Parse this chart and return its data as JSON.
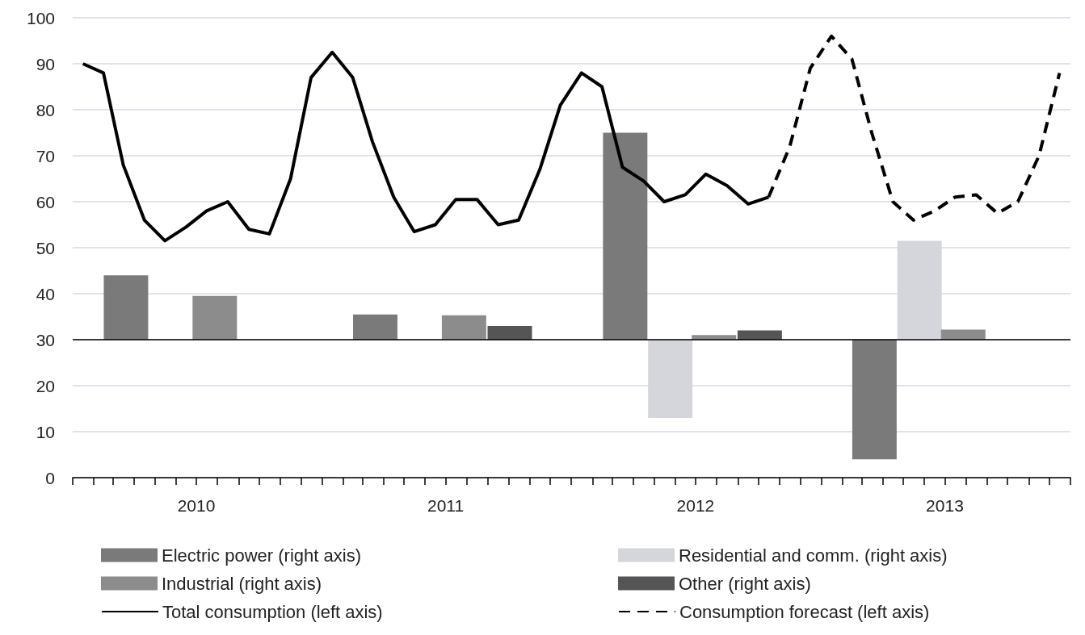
{
  "chart_data": {
    "type": "bar",
    "series": [
      {
        "name": "Electric power (right axis)",
        "color": "#7a7a7a",
        "x": [
          "2010-03-20",
          "2011-03-20",
          "2012-03-20",
          "2013-03-20"
        ],
        "base": [
          30,
          30,
          30,
          30
        ],
        "values": [
          14,
          5.5,
          45,
          -26
        ]
      },
      {
        "name": "Residential and comm. (right axis)",
        "color": "#d4d6dc",
        "x": [
          "2012-05-25",
          "2013-05-25"
        ],
        "base": [
          30,
          30
        ],
        "values": [
          -17,
          21.5
        ]
      },
      {
        "name": "Industrial (right axis)",
        "color": "#8c8c8c",
        "x": [
          "2010-07-28",
          "2011-07-28",
          "2012-07-28",
          "2013-07-28"
        ],
        "base": [
          30,
          30,
          30,
          30
        ],
        "values": [
          9.5,
          5.3,
          1,
          2.2
        ]
      },
      {
        "name": "Other (right axis)",
        "color": "#555555",
        "x": [
          "2011-10-03",
          "2012-10-03"
        ],
        "base": [
          30,
          30
        ],
        "values": [
          3,
          2
        ]
      },
      {
        "name": "Total consumption (left axis)",
        "type": "line",
        "color": "#000000",
        "line_style": "solid",
        "x": [
          "2010-01-16",
          "2010-02-15",
          "2010-03-16",
          "2010-04-16",
          "2010-05-16",
          "2010-06-16",
          "2010-07-16",
          "2010-08-16",
          "2010-09-16",
          "2010-10-16",
          "2010-11-16",
          "2010-12-16",
          "2011-01-16",
          "2011-02-15",
          "2011-03-16",
          "2011-04-16",
          "2011-05-16",
          "2011-06-16",
          "2011-07-16",
          "2011-08-16",
          "2011-09-16",
          "2011-10-16",
          "2011-11-16",
          "2011-12-16",
          "2012-01-16",
          "2012-02-15",
          "2012-03-16",
          "2012-04-16",
          "2012-05-16",
          "2012-06-16",
          "2012-07-16",
          "2012-08-16",
          "2012-09-16",
          "2012-10-16"
        ],
        "values": [
          90,
          88,
          68,
          56,
          51.5,
          54.5,
          58,
          60,
          54,
          53,
          65,
          87,
          92.5,
          87,
          73,
          61,
          53.5,
          55,
          60.5,
          60.5,
          55,
          56,
          67,
          81,
          88,
          85,
          67.5,
          64.5,
          60,
          61.5,
          66,
          63.5,
          59.5,
          61
        ]
      },
      {
        "name": "Consumption forecast (left axis)",
        "type": "line",
        "color": "#000000",
        "line_style": "dashed",
        "x": [
          "2012-10-16",
          "2012-11-16",
          "2012-12-16",
          "2013-01-16",
          "2013-02-15",
          "2013-03-16",
          "2013-04-16",
          "2013-05-16",
          "2013-06-16",
          "2013-07-16",
          "2013-08-16",
          "2013-09-16",
          "2013-10-16",
          "2013-11-16",
          "2013-12-16"
        ],
        "values": [
          61,
          72,
          89,
          96,
          91,
          75,
          60,
          56,
          58,
          61,
          61.5,
          57.5,
          60,
          70,
          88
        ]
      }
    ],
    "xlim": [
      "2010-01",
      "2014-01"
    ],
    "xticks": [
      {
        "value": "2010-01",
        "label": null
      },
      {
        "value": "2010-02",
        "label": null
      },
      {
        "value": "2010-03",
        "label": null
      },
      {
        "value": "2010-04",
        "label": null
      },
      {
        "value": "2010-05",
        "label": null
      },
      {
        "value": "2010-06",
        "label": null
      },
      {
        "value": "2010-07",
        "label": "2010"
      },
      {
        "value": "2010-08",
        "label": null
      },
      {
        "value": "2010-09",
        "label": null
      },
      {
        "value": "2010-10",
        "label": null
      },
      {
        "value": "2010-11",
        "label": null
      },
      {
        "value": "2010-12",
        "label": null
      },
      {
        "value": "2011-01",
        "label": null
      },
      {
        "value": "2011-02",
        "label": null
      },
      {
        "value": "2011-03",
        "label": null
      },
      {
        "value": "2011-04",
        "label": null
      },
      {
        "value": "2011-05",
        "label": null
      },
      {
        "value": "2011-06",
        "label": null
      },
      {
        "value": "2011-07",
        "label": "2011"
      },
      {
        "value": "2011-08",
        "label": null
      },
      {
        "value": "2011-09",
        "label": null
      },
      {
        "value": "2011-10",
        "label": null
      },
      {
        "value": "2011-11",
        "label": null
      },
      {
        "value": "2011-12",
        "label": null
      },
      {
        "value": "2012-01",
        "label": null
      },
      {
        "value": "2012-02",
        "label": null
      },
      {
        "value": "2012-03",
        "label": null
      },
      {
        "value": "2012-04",
        "label": null
      },
      {
        "value": "2012-05",
        "label": null
      },
      {
        "value": "2012-06",
        "label": null
      },
      {
        "value": "2012-07",
        "label": "2012"
      },
      {
        "value": "2012-08",
        "label": null
      },
      {
        "value": "2012-09",
        "label": null
      },
      {
        "value": "2012-10",
        "label": null
      },
      {
        "value": "2012-11",
        "label": null
      },
      {
        "value": "2012-12",
        "label": null
      },
      {
        "value": "2013-01",
        "label": null
      },
      {
        "value": "2013-02",
        "label": null
      },
      {
        "value": "2013-03",
        "label": null
      },
      {
        "value": "2013-04",
        "label": null
      },
      {
        "value": "2013-05",
        "label": null
      },
      {
        "value": "2013-06",
        "label": null
      },
      {
        "value": "2013-07",
        "label": "2013"
      },
      {
        "value": "2013-08",
        "label": null
      },
      {
        "value": "2013-09",
        "label": null
      },
      {
        "value": "2013-10",
        "label": null
      },
      {
        "value": "2013-11",
        "label": null
      },
      {
        "value": "2013-12",
        "label": null
      },
      {
        "value": "2014-01",
        "label": null
      }
    ],
    "ylim": [
      0,
      100
    ],
    "yticks": [
      0,
      10,
      20,
      30,
      40,
      50,
      60,
      70,
      80,
      90,
      100
    ],
    "ref_lines": [
      {
        "axis": "y",
        "value": 30,
        "color": "#000000",
        "line_style": "solid"
      }
    ],
    "grid": "y",
    "legend": "bottom",
    "marker": "none"
  }
}
